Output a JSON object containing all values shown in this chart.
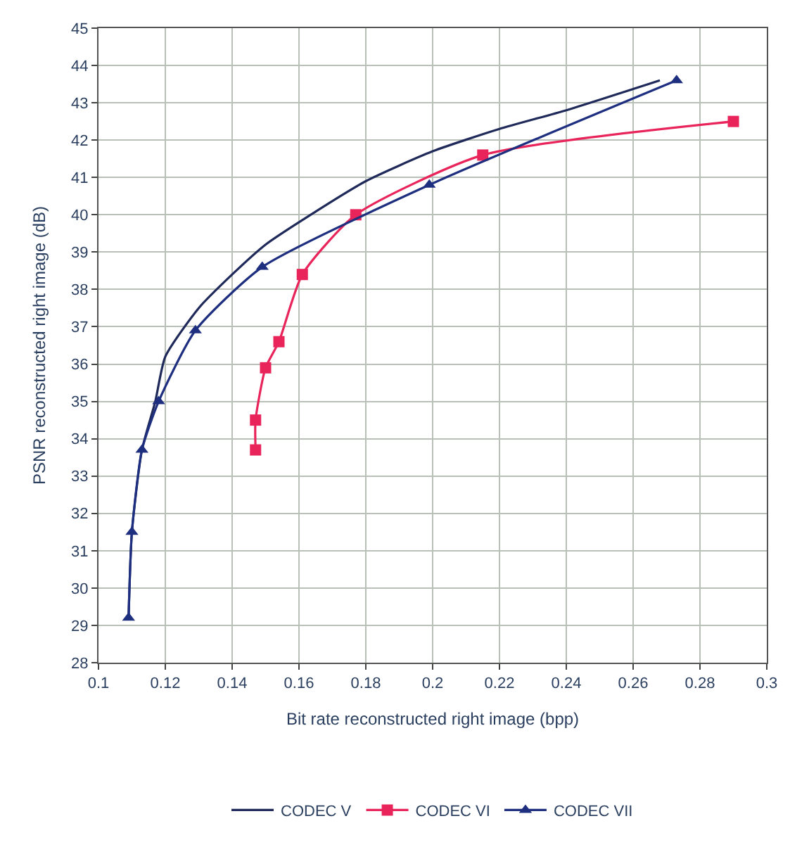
{
  "chart_data": {
    "type": "line",
    "xlabel": "Bit rate reconstructed right image (bpp)",
    "ylabel": "PSNR reconstructed right image (dB)",
    "xlim": [
      0.1,
      0.3
    ],
    "xticks": [
      0.1,
      0.12,
      0.14,
      0.16,
      0.18,
      0.2,
      0.22,
      0.24,
      0.26,
      0.28,
      0.3
    ],
    "ylim": [
      28,
      45
    ],
    "yticks": [
      28,
      29,
      30,
      31,
      32,
      33,
      34,
      35,
      36,
      37,
      38,
      39,
      40,
      41,
      42,
      43,
      44,
      45
    ],
    "grid": true,
    "legend": "bottom",
    "line_style": "solid",
    "series": [
      {
        "name": "CODEC V",
        "color": "#1f2a5a",
        "marker": "none",
        "x": [
          0.109,
          0.11,
          0.113,
          0.117,
          0.12,
          0.13,
          0.14,
          0.15,
          0.16,
          0.18,
          0.2,
          0.22,
          0.24,
          0.268
        ],
        "values": [
          29.2,
          31.5,
          33.7,
          35.0,
          36.2,
          37.5,
          38.4,
          39.2,
          39.8,
          40.9,
          41.7,
          42.3,
          42.8,
          43.6
        ]
      },
      {
        "name": "CODEC VI",
        "color": "#e8245a",
        "marker": "square",
        "x": [
          0.147,
          0.147,
          0.15,
          0.154,
          0.161,
          0.177,
          0.215,
          0.29
        ],
        "values": [
          33.7,
          34.5,
          35.9,
          36.6,
          38.4,
          40.0,
          41.6,
          42.5
        ]
      },
      {
        "name": "CODEC VII",
        "color": "#1f2f80",
        "marker": "triangle",
        "x": [
          0.109,
          0.11,
          0.113,
          0.118,
          0.129,
          0.149,
          0.199,
          0.273
        ],
        "values": [
          29.2,
          31.5,
          33.7,
          35.0,
          36.9,
          38.6,
          40.8,
          43.6
        ]
      }
    ]
  }
}
